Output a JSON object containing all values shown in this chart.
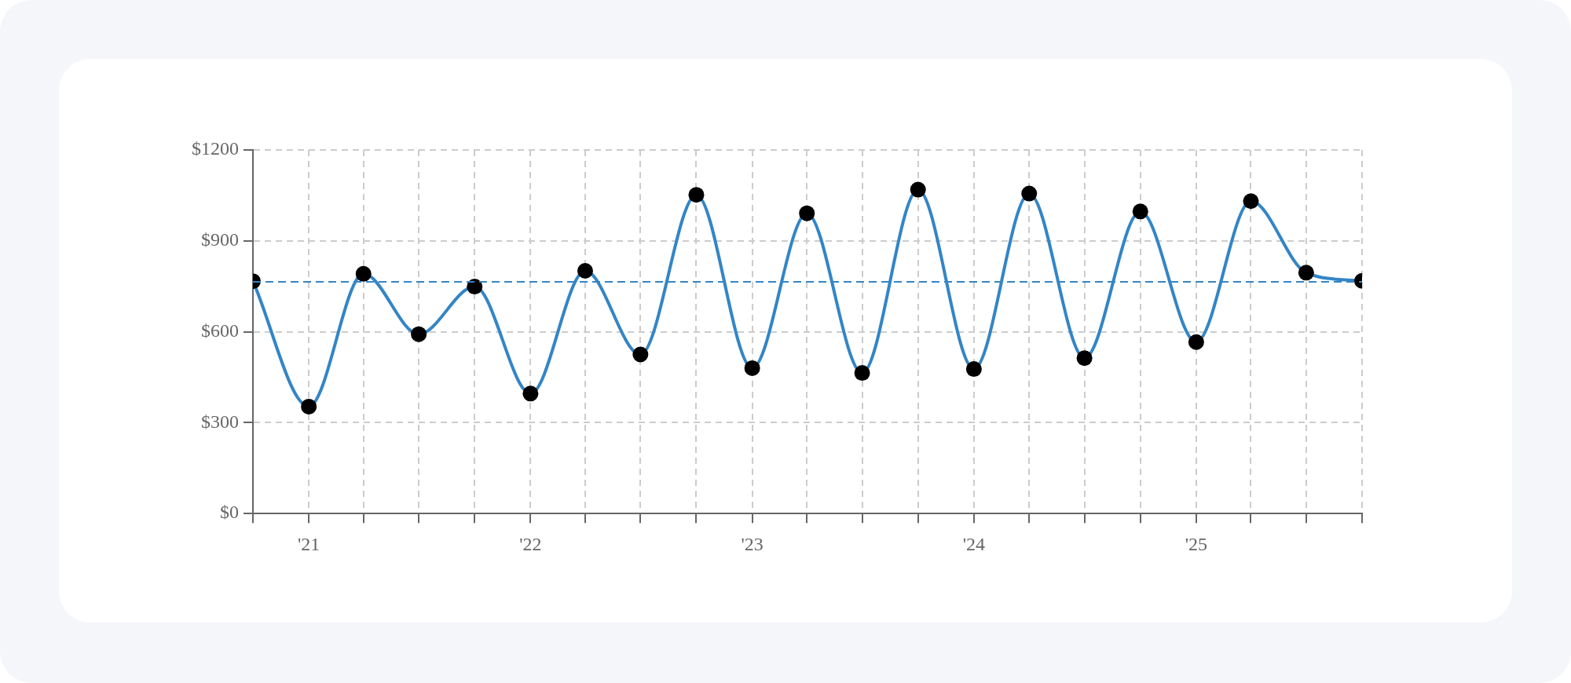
{
  "chart_data": {
    "type": "line",
    "x": [
      "2020-10",
      "2021-01",
      "2021-04",
      "2021-07",
      "2021-10",
      "2022-01",
      "2022-04",
      "2022-07",
      "2022-10",
      "2023-01",
      "2023-04",
      "2023-07",
      "2023-10",
      "2024-01",
      "2024-04",
      "2024-07",
      "2024-10",
      "2025-01",
      "2025-04",
      "2025-07",
      "2025-10"
    ],
    "series": [
      {
        "color": "#3385c6",
        "values": [
          767,
          353,
          791,
          592,
          749,
          396,
          801,
          525,
          1052,
          480,
          991,
          464,
          1069,
          477,
          1056,
          513,
          997,
          566,
          1031,
          795,
          768
        ]
      }
    ],
    "xlim": [
      "2020-10",
      "2025-10"
    ],
    "xticks": [
      {
        "value": "2020-10",
        "label": null
      },
      {
        "value": "2021-01",
        "label": "'21"
      },
      {
        "value": "2021-04",
        "label": null
      },
      {
        "value": "2021-07",
        "label": null
      },
      {
        "value": "2021-10",
        "label": null
      },
      {
        "value": "2022-01",
        "label": "'22"
      },
      {
        "value": "2022-04",
        "label": null
      },
      {
        "value": "2022-07",
        "label": null
      },
      {
        "value": "2022-10",
        "label": null
      },
      {
        "value": "2023-01",
        "label": "'23"
      },
      {
        "value": "2023-04",
        "label": null
      },
      {
        "value": "2023-07",
        "label": null
      },
      {
        "value": "2023-10",
        "label": null
      },
      {
        "value": "2024-01",
        "label": "'24"
      },
      {
        "value": "2024-04",
        "label": null
      },
      {
        "value": "2024-07",
        "label": null
      },
      {
        "value": "2024-10",
        "label": null
      },
      {
        "value": "2025-01",
        "label": "'25"
      },
      {
        "value": "2025-04",
        "label": null
      },
      {
        "value": "2025-07",
        "label": null
      },
      {
        "value": "2025-10",
        "label": null
      }
    ],
    "ylim": [
      0,
      1200
    ],
    "yticks": [
      {
        "value": 0,
        "label": "$0"
      },
      {
        "value": 300,
        "label": "$300"
      },
      {
        "value": 600,
        "label": "$600"
      },
      {
        "value": 900,
        "label": "$900"
      },
      {
        "value": 1200,
        "label": "$1200"
      }
    ],
    "ref_lines": [
      {
        "axis": "y",
        "value": 765,
        "color": "#3385c6",
        "line_style": "dashed"
      }
    ],
    "grid": true,
    "legend": false,
    "marker": "circle",
    "line_style": "solid"
  }
}
